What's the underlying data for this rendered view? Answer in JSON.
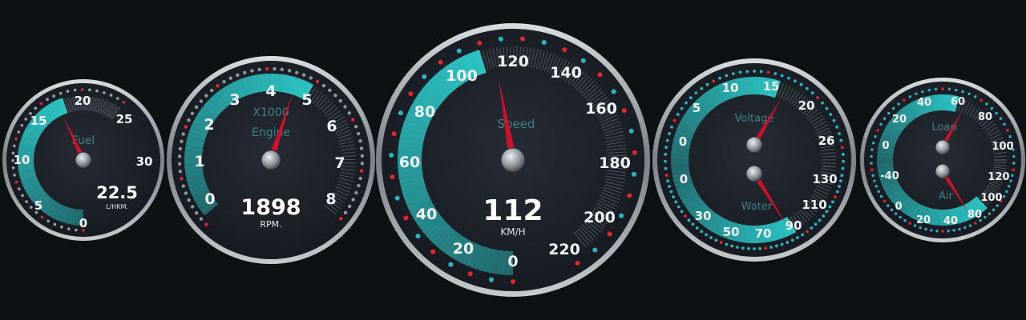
{
  "colors": {
    "background": "#0e1114",
    "face": "#1e232b",
    "teal": "#2cc4c4",
    "needle": "#d0102a",
    "tick_red": "#e0262f",
    "tick_blue": "#2ab6c4"
  },
  "gauges": {
    "fuel": {
      "label": "Fuel",
      "scale": [
        "0",
        "5",
        "10",
        "15",
        "20",
        "25",
        "30"
      ],
      "value": 22.5,
      "readout": "22.5",
      "unit": "L/HKM."
    },
    "engine": {
      "label": "Engine",
      "multiplier": "X1000",
      "scale": [
        "0",
        "1",
        "2",
        "3",
        "4",
        "5",
        "6",
        "7",
        "8"
      ],
      "value": 1898,
      "readout": "1898",
      "unit": "RPM."
    },
    "speed": {
      "label": "Speed",
      "scale": [
        "0",
        "20",
        "40",
        "60",
        "80",
        "100",
        "120",
        "140",
        "160",
        "180",
        "200",
        "220"
      ],
      "value": 112,
      "readout": "112",
      "unit": "KM/H"
    },
    "voltage": {
      "label": "Voltage",
      "scale": [
        "0",
        "5",
        "10",
        "15",
        "20",
        "26"
      ],
      "value": 16
    },
    "water": {
      "label": "Water",
      "scale": [
        "0",
        "30",
        "50",
        "70",
        "90",
        "110",
        "130"
      ],
      "value": 88
    },
    "load": {
      "label": "Load",
      "scale": [
        "0",
        "20",
        "40",
        "60",
        "80",
        "100"
      ],
      "value": 58
    },
    "air": {
      "label": "Air",
      "scale": [
        "-40",
        "0",
        "20",
        "40",
        "80",
        "100",
        "120"
      ],
      "value": 78
    }
  }
}
